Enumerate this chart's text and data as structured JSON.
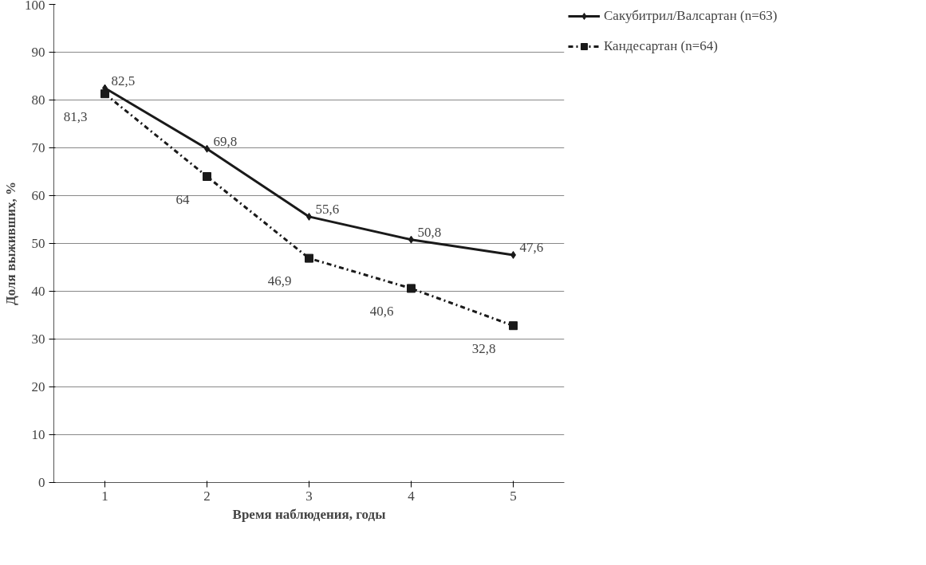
{
  "chart_data": {
    "type": "line",
    "xlabel": "Время наблюдения, годы",
    "ylabel": "Доля выживших, %",
    "categories": [
      "1",
      "2",
      "3",
      "4",
      "5"
    ],
    "series": [
      {
        "name": "Сакубитрил/Валсартан (n=63)",
        "color": "#1a1a1a",
        "values": [
          82.5,
          69.8,
          55.6,
          50.8,
          47.6
        ],
        "value_labels": [
          "82,5",
          "69,8",
          "55,6",
          "50,8",
          "47,6"
        ],
        "marker": "diamond",
        "line_style": "solid"
      },
      {
        "name": "Кандесартан (n=64)",
        "color": "#1a1a1a",
        "values": [
          81.3,
          64,
          46.9,
          40.6,
          32.8
        ],
        "value_labels": [
          "81,3",
          "64",
          "46,9",
          "40,6",
          "32,8"
        ],
        "marker": "square",
        "line_style": "dashdot"
      }
    ],
    "ylim": [
      0,
      100
    ],
    "yticks": [
      0,
      10,
      20,
      30,
      40,
      50,
      60,
      70,
      80,
      90,
      100
    ],
    "grid": "y",
    "legend": "top right"
  }
}
